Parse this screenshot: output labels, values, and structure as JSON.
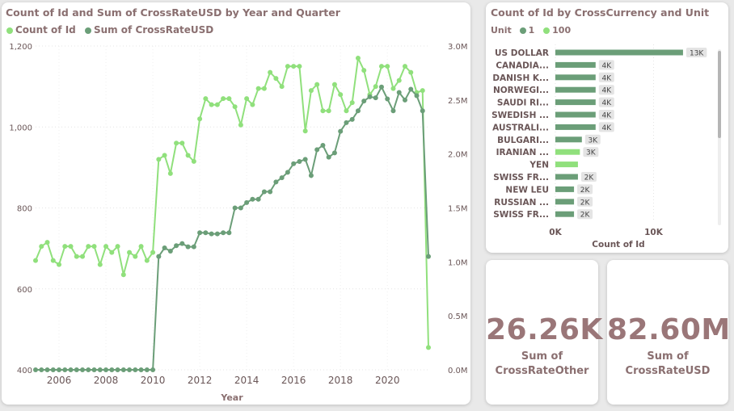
{
  "line_card": {
    "title": "Count of Id and Sum of CrossRateUSD by Year and Quarter",
    "legend": [
      {
        "label": "Count of Id",
        "color": "#90e07c"
      },
      {
        "label": "Sum of CrossRateUSD",
        "color": "#6b9e78"
      }
    ]
  },
  "bar_card": {
    "title": "Count of Id by CrossCurrency and Unit",
    "legend_title": "Unit",
    "legend": [
      {
        "label": "1",
        "color": "#6b9e78"
      },
      {
        "label": "100",
        "color": "#90e07c"
      }
    ]
  },
  "kpis": [
    {
      "value": "26.26K",
      "label_line1": "Sum of",
      "label_line2": "CrossRateOther"
    },
    {
      "value": "82.60M",
      "label_line1": "Sum of",
      "label_line2": "CrossRateUSD"
    }
  ],
  "chart_data": [
    {
      "type": "line",
      "title": "Count of Id and Sum of CrossRateUSD by Year and Quarter",
      "xlabel": "Year",
      "ylabel": "",
      "x_ticks": [
        "2006",
        "2008",
        "2010",
        "2012",
        "2014",
        "2016",
        "2018",
        "2020"
      ],
      "y_left_ticks": [
        "400",
        "600",
        "800",
        "1,000",
        "1,200"
      ],
      "y_left_lim": [
        400,
        1200
      ],
      "y_right_ticks": [
        "0.0M",
        "0.5M",
        "1.0M",
        "1.5M",
        "2.0M",
        "2.5M",
        "3.0M"
      ],
      "y_right_lim": [
        0,
        3000000
      ],
      "grid": true,
      "legend_position": "top-left",
      "x": [
        2005.0,
        2005.25,
        2005.5,
        2005.75,
        2006.0,
        2006.25,
        2006.5,
        2006.75,
        2007.0,
        2007.25,
        2007.5,
        2007.75,
        2008.0,
        2008.25,
        2008.5,
        2008.75,
        2009.0,
        2009.25,
        2009.5,
        2009.75,
        2010.0,
        2010.25,
        2010.5,
        2010.75,
        2011.0,
        2011.25,
        2011.5,
        2011.75,
        2012.0,
        2012.25,
        2012.5,
        2012.75,
        2013.0,
        2013.25,
        2013.5,
        2013.75,
        2014.0,
        2014.25,
        2014.5,
        2014.75,
        2015.0,
        2015.25,
        2015.5,
        2015.75,
        2016.0,
        2016.25,
        2016.5,
        2016.75,
        2017.0,
        2017.25,
        2017.5,
        2017.75,
        2018.0,
        2018.25,
        2018.5,
        2018.75,
        2019.0,
        2019.25,
        2019.5,
        2019.75,
        2020.0,
        2020.25,
        2020.5,
        2020.75,
        2021.0,
        2021.25,
        2021.5,
        2021.75
      ],
      "series": [
        {
          "name": "Count of Id",
          "axis": "left",
          "color": "#90e07c",
          "values": [
            670,
            705,
            715,
            670,
            660,
            705,
            705,
            680,
            680,
            705,
            705,
            660,
            705,
            690,
            705,
            635,
            690,
            680,
            705,
            670,
            690,
            920,
            930,
            885,
            960,
            960,
            930,
            915,
            1020,
            1070,
            1055,
            1055,
            1070,
            1070,
            1050,
            1005,
            1070,
            1055,
            1095,
            1095,
            1135,
            1120,
            1100,
            1150,
            1150,
            1150,
            990,
            1090,
            1105,
            1040,
            1040,
            1105,
            1080,
            1040,
            1060,
            1170,
            1140,
            1080,
            1100,
            1150,
            1150,
            1095,
            1115,
            1150,
            1135,
            1085,
            1090,
            455
          ]
        },
        {
          "name": "Sum of CrossRateUSD",
          "axis": "right",
          "color": "#6b9e78",
          "values": [
            0,
            0,
            0,
            0,
            0,
            0,
            0,
            0,
            0,
            0,
            0,
            0,
            0,
            0,
            0,
            0,
            0,
            0,
            0,
            0,
            0,
            1050000,
            1130000,
            1100000,
            1150000,
            1170000,
            1140000,
            1140000,
            1270000,
            1270000,
            1260000,
            1260000,
            1270000,
            1270000,
            1500000,
            1500000,
            1550000,
            1580000,
            1580000,
            1650000,
            1650000,
            1740000,
            1780000,
            1830000,
            1910000,
            1930000,
            1950000,
            1800000,
            2040000,
            2080000,
            1970000,
            2010000,
            2210000,
            2290000,
            2320000,
            2400000,
            2490000,
            2530000,
            2520000,
            2620000,
            2510000,
            2400000,
            2570000,
            2500000,
            2600000,
            2540000,
            2400000,
            1050000
          ]
        }
      ]
    },
    {
      "type": "bar",
      "title": "Count of Id by CrossCurrency and Unit",
      "xlabel": "Count of Id",
      "ylabel": "",
      "x_ticks": [
        "0K",
        "10K"
      ],
      "xlim": [
        0,
        13500
      ],
      "categories": [
        "US DOLLAR",
        "CANADIA...",
        "DANISH K...",
        "NORWEGI...",
        "SAUDI RI...",
        "SWEDISH ...",
        "AUSTRALI...",
        "BULGARI...",
        "IRANIAN ...",
        "YEN",
        "SWISS FR...",
        "NEW LEU",
        "RUSSIAN ...",
        "SWISS FR..."
      ],
      "series": [
        {
          "name": "1",
          "color": "#6b9e78",
          "values": [
            13000,
            4100,
            4100,
            4100,
            4100,
            4100,
            4100,
            2700,
            null,
            null,
            2300,
            1900,
            1900,
            1900
          ]
        },
        {
          "name": "100",
          "color": "#90e07c",
          "values": [
            null,
            null,
            null,
            null,
            null,
            null,
            null,
            null,
            2500,
            2300,
            null,
            null,
            null,
            null
          ]
        }
      ],
      "data_labels": [
        "13K",
        "4K",
        "4K",
        "4K",
        "4K",
        "4K",
        "4K",
        "3K",
        "3K",
        "",
        "2K",
        "2K",
        "2K",
        "2K"
      ]
    }
  ]
}
